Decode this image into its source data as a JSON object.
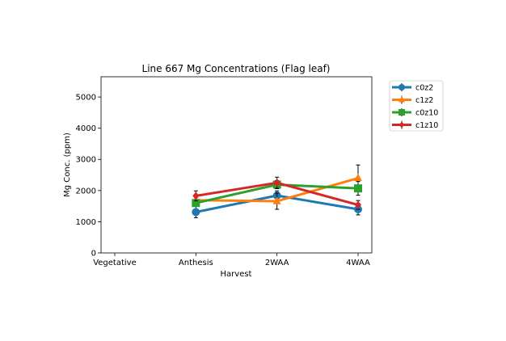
{
  "chart_data": {
    "type": "line",
    "title": "Line 667 Mg Concentrations (Flag leaf)",
    "xlabel": "Harvest",
    "ylabel": "Mg Conc. (ppm)",
    "categories": [
      "Vegetative",
      "Anthesis",
      "2WAA",
      "4WAA"
    ],
    "yticks": [
      0,
      1000,
      2000,
      3000,
      4000,
      5000
    ],
    "ylim": [
      0,
      5650
    ],
    "grid": false,
    "legend": "outside-right",
    "series": [
      {
        "name": "c0z2",
        "color": "#1f77b4",
        "marker": "circle",
        "values": [
          null,
          1310,
          1840,
          1400
        ],
        "errors": [
          null,
          180,
          150,
          180
        ]
      },
      {
        "name": "c1z2",
        "color": "#ff7f0e",
        "marker": "triangle",
        "values": [
          null,
          1690,
          1660,
          2400
        ],
        "errors": [
          null,
          120,
          260,
          420
        ]
      },
      {
        "name": "c0z10",
        "color": "#2ca02c",
        "marker": "square",
        "values": [
          null,
          1600,
          2190,
          2070
        ],
        "errors": [
          null,
          110,
          130,
          220
        ]
      },
      {
        "name": "c1z10",
        "color": "#d62728",
        "marker": "diamond",
        "values": [
          null,
          1830,
          2250,
          1540
        ],
        "errors": [
          null,
          160,
          180,
          140
        ]
      }
    ]
  }
}
